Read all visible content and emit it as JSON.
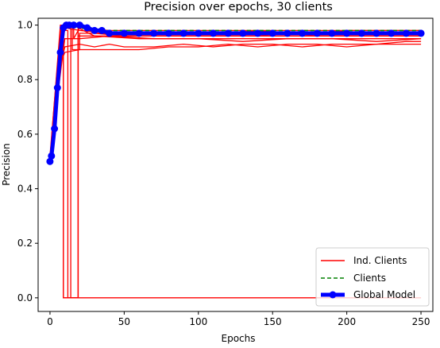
{
  "chart_data": {
    "type": "line",
    "title": "Precision over epochs, 30 clients",
    "xlabel": "Epochs",
    "ylabel": "Precision",
    "xlim": [
      -8,
      258
    ],
    "ylim": [
      -0.05,
      1.025
    ],
    "xticks": [
      0,
      50,
      100,
      150,
      200,
      250
    ],
    "yticks": [
      0.0,
      0.2,
      0.4,
      0.6,
      0.8,
      1.0
    ],
    "xtick_labels": [
      "0",
      "50",
      "100",
      "150",
      "200",
      "250"
    ],
    "ytick_labels": [
      "0.0",
      "0.2",
      "0.4",
      "0.6",
      "0.8",
      "1.0"
    ],
    "grid": false,
    "legend": {
      "position": "lower-right",
      "entries": [
        "Ind. Clients",
        "Clients",
        "Global Model"
      ]
    },
    "colors": {
      "ind_clients": "#ff0000",
      "clients": "#008000",
      "global_model": "#0000ff"
    },
    "series": [
      {
        "name": "Ind. Clients",
        "style": "solid",
        "lines": [
          {
            "x": [
              0,
              5,
              10,
              20,
              30,
              40,
              50,
              70,
              90,
              110,
              130,
              150,
              170,
              190,
              210,
              230,
              250
            ],
            "y": [
              0.5,
              0.8,
              0.92,
              0.93,
              0.92,
              0.93,
              0.92,
              0.92,
              0.93,
              0.92,
              0.93,
              0.93,
              0.92,
              0.93,
              0.93,
              0.93,
              0.93
            ]
          },
          {
            "x": [
              0,
              5,
              10,
              20,
              40,
              60,
              80,
              100,
              120,
              140,
              160,
              180,
              200,
              220,
              240,
              250
            ],
            "y": [
              0.51,
              0.83,
              0.9,
              0.91,
              0.91,
              0.91,
              0.92,
              0.92,
              0.93,
              0.92,
              0.93,
              0.93,
              0.92,
              0.93,
              0.94,
              0.94
            ]
          },
          {
            "x": [
              0,
              8,
              9,
              9,
              20,
              40,
              60,
              80,
              100,
              120,
              140,
              160,
              180,
              200,
              220,
              240,
              250
            ],
            "y": [
              0.51,
              1.0,
              1.0,
              0.0,
              0.0,
              0.0,
              0.0,
              0.0,
              0.0,
              0.0,
              0.0,
              0.0,
              0.0,
              0.0,
              0.0,
              0.0,
              0.0
            ]
          },
          {
            "x": [
              0,
              8,
              9,
              9,
              19,
              19,
              30,
              50,
              80,
              110,
              140,
              170,
              200,
              230,
              250
            ],
            "y": [
              0.5,
              1.0,
              1.0,
              0.0,
              0.0,
              1.0,
              0.97,
              0.96,
              0.96,
              0.96,
              0.96,
              0.96,
              0.96,
              0.96,
              0.96
            ]
          },
          {
            "x": [
              0,
              7,
              12,
              12,
              19,
              19,
              30,
              60,
              90,
              120,
              150,
              180,
              210,
              240,
              250
            ],
            "y": [
              0.52,
              0.98,
              0.98,
              0.0,
              0.0,
              0.99,
              0.96,
              0.95,
              0.95,
              0.95,
              0.95,
              0.95,
              0.95,
              0.95,
              0.95
            ]
          },
          {
            "x": [
              0,
              9,
              14,
              14,
              19,
              19,
              40,
              70,
              100,
              130,
              160,
              190,
              220,
              250
            ],
            "y": [
              0.5,
              1.0,
              1.0,
              0.0,
              0.0,
              0.96,
              0.96,
              0.95,
              0.95,
              0.94,
              0.95,
              0.95,
              0.94,
              0.95
            ]
          },
          {
            "x": [
              0,
              7,
              15,
              15,
              20,
              20,
              50,
              80,
              110,
              140,
              170,
              200,
              230,
              250
            ],
            "y": [
              0.51,
              1.0,
              1.0,
              0.91,
              0.91,
              0.97,
              0.97,
              0.97,
              0.97,
              0.97,
              0.97,
              0.97,
              0.97,
              0.97
            ]
          },
          {
            "x": [
              0,
              8,
              16,
              16,
              20,
              40,
              70,
              100,
              130,
              160,
              190,
              220,
              250
            ],
            "y": [
              0.5,
              1.0,
              1.0,
              0.95,
              0.99,
              0.98,
              0.98,
              0.98,
              0.98,
              0.98,
              0.98,
              0.98,
              0.98
            ]
          },
          {
            "x": [
              0,
              10,
              20,
              40,
              60,
              80,
              100,
              120,
              140,
              160,
              180,
              200,
              220,
              240,
              250
            ],
            "y": [
              0.52,
              0.95,
              0.95,
              0.96,
              0.96,
              0.96,
              0.96,
              0.96,
              0.96,
              0.97,
              0.96,
              0.96,
              0.96,
              0.96,
              0.96
            ]
          },
          {
            "x": [
              0,
              10,
              20,
              40,
              60,
              80,
              100,
              120,
              140,
              160,
              180,
              200,
              220,
              240,
              250
            ],
            "y": [
              0.5,
              0.99,
              0.98,
              0.97,
              0.97,
              0.97,
              0.97,
              0.97,
              0.98,
              0.97,
              0.97,
              0.98,
              0.98,
              0.98,
              0.98
            ]
          }
        ]
      },
      {
        "name": "Clients",
        "style": "dashed",
        "x": [
          0,
          2,
          4,
          6,
          8,
          10,
          14,
          20,
          30,
          50,
          80,
          110,
          140,
          170,
          200,
          230,
          250
        ],
        "y": [
          0.51,
          0.57,
          0.66,
          0.8,
          0.98,
          1.0,
          1.0,
          0.99,
          0.98,
          0.98,
          0.98,
          0.98,
          0.98,
          0.98,
          0.98,
          0.98,
          0.98
        ]
      },
      {
        "name": "Global Model",
        "style": "solid-marker",
        "x": [
          0,
          1,
          3,
          5,
          7,
          9,
          11,
          13,
          16,
          20,
          25,
          30,
          35,
          40,
          50,
          60,
          70,
          80,
          90,
          100,
          110,
          120,
          130,
          140,
          150,
          160,
          170,
          180,
          190,
          200,
          210,
          220,
          230,
          240,
          250
        ],
        "y": [
          0.5,
          0.52,
          0.62,
          0.77,
          0.9,
          0.99,
          1.0,
          1.0,
          1.0,
          1.0,
          0.99,
          0.98,
          0.98,
          0.97,
          0.97,
          0.97,
          0.97,
          0.97,
          0.97,
          0.97,
          0.97,
          0.97,
          0.97,
          0.97,
          0.97,
          0.97,
          0.97,
          0.97,
          0.97,
          0.97,
          0.97,
          0.97,
          0.97,
          0.97,
          0.97
        ]
      }
    ]
  }
}
